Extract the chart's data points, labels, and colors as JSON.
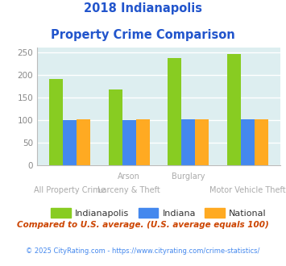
{
  "title_line1": "2018 Indianapolis",
  "title_line2": "Property Crime Comparison",
  "title_color": "#2255cc",
  "cat_labels_top": [
    "",
    "Arson",
    "Burglary",
    ""
  ],
  "cat_labels_bottom": [
    "All Property Crime",
    "Larceny & Theft",
    "",
    "Motor Vehicle Theft"
  ],
  "series": {
    "Indianapolis": [
      190,
      168,
      237,
      246
    ],
    "Indiana": [
      100,
      100,
      101,
      101
    ],
    "National": [
      101,
      101,
      101,
      101
    ]
  },
  "colors": {
    "Indianapolis": "#88cc22",
    "Indiana": "#4488ee",
    "National": "#ffaa22"
  },
  "ylim": [
    0,
    260
  ],
  "yticks": [
    0,
    50,
    100,
    150,
    200,
    250
  ],
  "background_color": "#ddeef0",
  "grid_color": "#ffffff",
  "footnote": "Compared to U.S. average. (U.S. average equals 100)",
  "footnote2": "© 2025 CityRating.com - https://www.cityrating.com/crime-statistics/",
  "footnote_color": "#cc4400",
  "footnote2_color": "#4488ee",
  "label_color": "#aaaaaa"
}
